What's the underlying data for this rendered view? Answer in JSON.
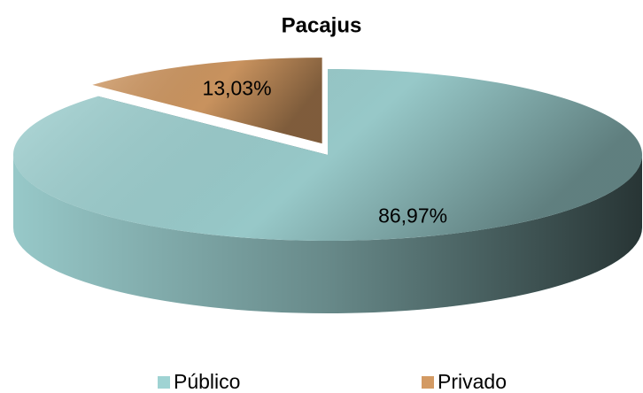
{
  "chart_data": {
    "type": "pie",
    "title": "Pacajus",
    "categories": [
      "Público",
      "Privado"
    ],
    "values": [
      86.97,
      13.03
    ],
    "value_labels": [
      "86,97%",
      "13,03%"
    ],
    "colors": [
      "#9fd3d3",
      "#d39a63"
    ],
    "legend": "bottom"
  }
}
